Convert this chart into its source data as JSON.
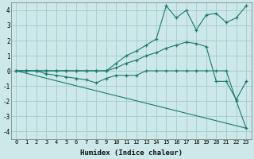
{
  "xlabel": "Humidex (Indice chaleur)",
  "xlim": [
    -0.5,
    23.5
  ],
  "ylim": [
    -4.5,
    4.5
  ],
  "bg_color": "#cce8e8",
  "grid_color": "#aacece",
  "line_color": "#1a7a6e",
  "lines": [
    {
      "x": [
        0,
        1,
        2,
        3,
        4,
        5,
        6,
        7,
        8,
        9,
        10,
        11,
        12,
        13,
        14,
        15,
        16,
        17,
        18,
        19,
        20,
        21,
        22,
        23
      ],
      "y": [
        0.0,
        0.0,
        0.0,
        0.0,
        0.0,
        0.0,
        0.0,
        0.0,
        0.0,
        0.0,
        0.5,
        1.0,
        1.3,
        1.7,
        2.1,
        4.3,
        3.5,
        4.0,
        2.7,
        3.7,
        3.8,
        3.2,
        3.5,
        4.3
      ]
    },
    {
      "x": [
        0,
        1,
        2,
        3,
        4,
        5,
        6,
        7,
        8,
        9,
        10,
        11,
        12,
        13,
        14,
        15,
        16,
        17,
        18,
        19,
        20,
        21,
        22,
        23
      ],
      "y": [
        0.0,
        0.0,
        0.0,
        0.0,
        0.0,
        0.0,
        0.0,
        0.0,
        0.0,
        0.0,
        0.2,
        0.5,
        0.7,
        1.0,
        1.2,
        1.5,
        1.7,
        1.9,
        1.8,
        1.6,
        -0.7,
        -0.7,
        -1.9,
        -0.7
      ]
    },
    {
      "x": [
        0,
        1,
        2,
        3,
        4,
        5,
        6,
        7,
        8,
        9,
        10,
        11,
        12,
        13,
        14,
        15,
        16,
        17,
        18,
        19,
        20,
        21,
        22,
        23
      ],
      "y": [
        0.0,
        0.0,
        0.0,
        -0.2,
        -0.3,
        -0.4,
        -0.5,
        -0.6,
        -0.8,
        -0.5,
        -0.3,
        -0.3,
        -0.3,
        0.0,
        0.0,
        0.0,
        0.0,
        0.0,
        0.0,
        0.0,
        0.0,
        0.0,
        -2.0,
        -3.8
      ]
    },
    {
      "x": [
        0,
        23
      ],
      "y": [
        0.0,
        -3.8
      ]
    }
  ]
}
